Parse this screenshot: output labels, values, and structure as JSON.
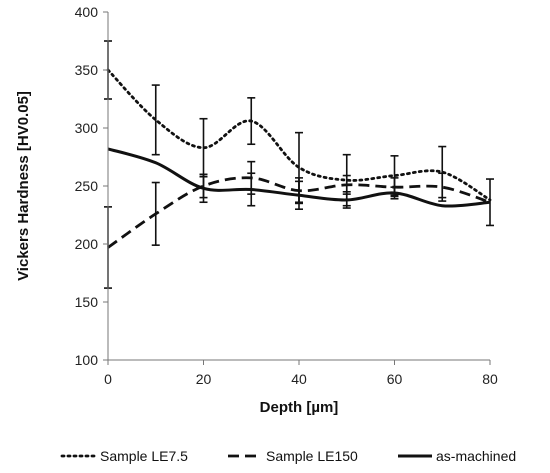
{
  "chart_data": {
    "type": "line",
    "title": "",
    "xlabel": "Depth [µm]",
    "ylabel": "Vickers Hardness [HV0.05]",
    "xlim": [
      0,
      80
    ],
    "ylim": [
      100,
      400
    ],
    "x_ticks": [
      0,
      20,
      40,
      60,
      80
    ],
    "y_ticks": [
      100,
      150,
      200,
      250,
      300,
      350,
      400
    ],
    "grid": false,
    "legend_position": "bottom",
    "x": [
      0,
      10,
      20,
      30,
      40,
      50,
      60,
      70,
      80
    ],
    "series": [
      {
        "name": "Sample LE7.5",
        "line_style": "dotted",
        "color": "#111111",
        "values": [
          350,
          307,
          283,
          306,
          266,
          255,
          259,
          262,
          238
        ],
        "error": [
          25,
          30,
          25,
          20,
          30,
          22,
          17,
          22,
          0
        ]
      },
      {
        "name": "Sample LE150",
        "line_style": "dashed",
        "color": "#111111",
        "values": [
          197,
          226,
          250,
          257,
          246,
          251,
          249,
          249,
          236
        ],
        "error": [
          35,
          27,
          10,
          14,
          11,
          8,
          8,
          12,
          20
        ]
      },
      {
        "name": "as-machined",
        "line_style": "solid",
        "color": "#111111",
        "values": [
          282,
          270,
          248,
          247,
          242,
          238,
          244,
          233,
          236
        ],
        "error": [
          0,
          0,
          12,
          14,
          12,
          7,
          5,
          0,
          0
        ]
      }
    ]
  }
}
